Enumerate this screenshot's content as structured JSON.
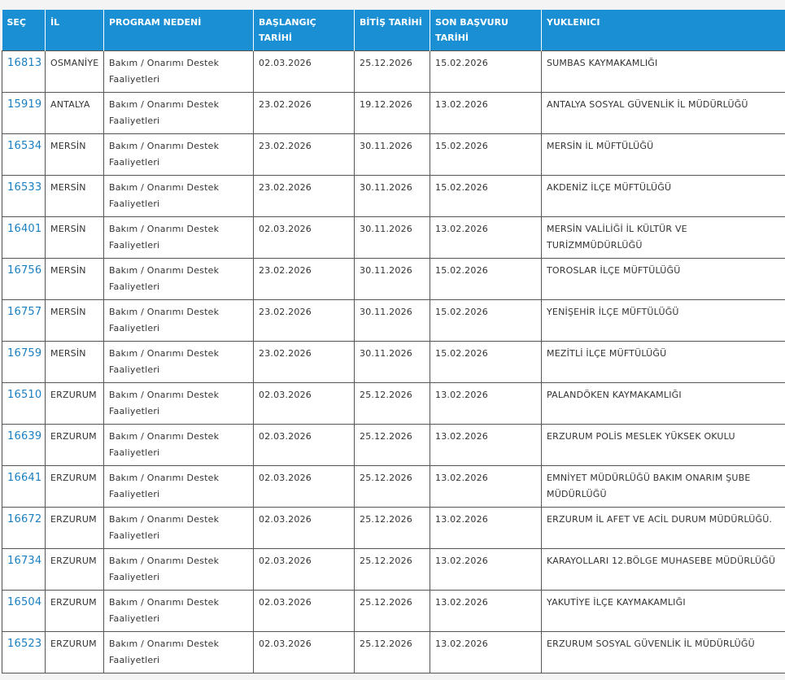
{
  "table": {
    "headers": [
      "SEÇ",
      "İL",
      "PROGRAM NEDENİ",
      "BAŞLANGIÇ TARİHİ",
      "BİTİŞ TARİHİ",
      "SON BAŞVURU TARİHİ",
      "YUKLENICI"
    ],
    "rows": [
      [
        "16813",
        "OSMANİYE",
        "Bakım / Onarımı Destek Faaliyetleri",
        "02.03.2026",
        "25.12.2026",
        "15.02.2026",
        "SUMBAS KAYMAKAMLIĞI"
      ],
      [
        "15919",
        "ANTALYA",
        "Bakım / Onarımı Destek Faaliyetleri",
        "23.02.2026",
        "19.12.2026",
        "13.02.2026",
        "ANTALYA SOSYAL GÜVENLİK İL MÜDÜRLÜĞÜ"
      ],
      [
        "16534",
        "MERSİN",
        "Bakım / Onarımı Destek Faaliyetleri",
        "23.02.2026",
        "30.11.2026",
        "15.02.2026",
        "MERSİN İL MÜFTÜLÜĞÜ"
      ],
      [
        "16533",
        "MERSİN",
        "Bakım / Onarımı Destek Faaliyetleri",
        "23.02.2026",
        "30.11.2026",
        "15.02.2026",
        "AKDENİZ İLÇE MÜFTÜLÜĞÜ"
      ],
      [
        "16401",
        "MERSİN",
        "Bakım / Onarımı Destek Faaliyetleri",
        "02.03.2026",
        "30.11.2026",
        "13.02.2026",
        "MERSİN VALİLİĞİ İL KÜLTÜR VE TURİZMMÜDÜRLÜĞÜ"
      ],
      [
        "16756",
        "MERSİN",
        "Bakım / Onarımı Destek Faaliyetleri",
        "23.02.2026",
        "30.11.2026",
        "15.02.2026",
        "TOROSLAR İLÇE MÜFTÜLÜĞÜ"
      ],
      [
        "16757",
        "MERSİN",
        "Bakım / Onarımı Destek Faaliyetleri",
        "23.02.2026",
        "30.11.2026",
        "15.02.2026",
        "YENİŞEHİR İLÇE MÜFTÜLÜĞÜ"
      ],
      [
        "16759",
        "MERSİN",
        "Bakım / Onarımı Destek Faaliyetleri",
        "23.02.2026",
        "30.11.2026",
        "15.02.2026",
        "MEZİTLİ İLÇE MÜFTÜLÜĞÜ"
      ],
      [
        "16510",
        "ERZURUM",
        "Bakım / Onarımı Destek Faaliyetleri",
        "02.03.2026",
        "25.12.2026",
        "13.02.2026",
        "PALANDÖKEN KAYMAKAMLIĞI"
      ],
      [
        "16639",
        "ERZURUM",
        "Bakım / Onarımı Destek Faaliyetleri",
        "02.03.2026",
        "25.12.2026",
        "13.02.2026",
        "ERZURUM POLİS MESLEK YÜKSEK OKULU"
      ],
      [
        "16641",
        "ERZURUM",
        "Bakım / Onarımı Destek Faaliyetleri",
        "02.03.2026",
        "25.12.2026",
        "13.02.2026",
        "EMNİYET MÜDÜRLÜĞÜ BAKIM ONARIM ŞUBE MÜDÜRLÜĞÜ"
      ],
      [
        "16672",
        "ERZURUM",
        "Bakım / Onarımı Destek Faaliyetleri",
        "02.03.2026",
        "25.12.2026",
        "13.02.2026",
        "ERZURUM İL AFET VE ACİL DURUM MÜDÜRLÜĞÜ."
      ],
      [
        "16734",
        "ERZURUM",
        "Bakım / Onarımı Destek Faaliyetleri",
        "02.03.2026",
        "25.12.2026",
        "13.02.2026",
        "KARAYOLLARI 12.BÖLGE MUHASEBE MÜDÜRLÜĞÜ"
      ],
      [
        "16504",
        "ERZURUM",
        "Bakım / Onarımı Destek Faaliyetleri",
        "02.03.2026",
        "25.12.2026",
        "13.02.2026",
        "YAKUTİYE İLÇE KAYMAKAMLIĞI"
      ],
      [
        "16523",
        "ERZURUM",
        "Bakım / Onarımı Destek Faaliyetleri",
        "02.03.2026",
        "25.12.2026",
        "13.02.2026",
        "ERZURUM SOSYAL GÜVENLİK İL MÜDÜRLÜĞÜ"
      ]
    ]
  }
}
